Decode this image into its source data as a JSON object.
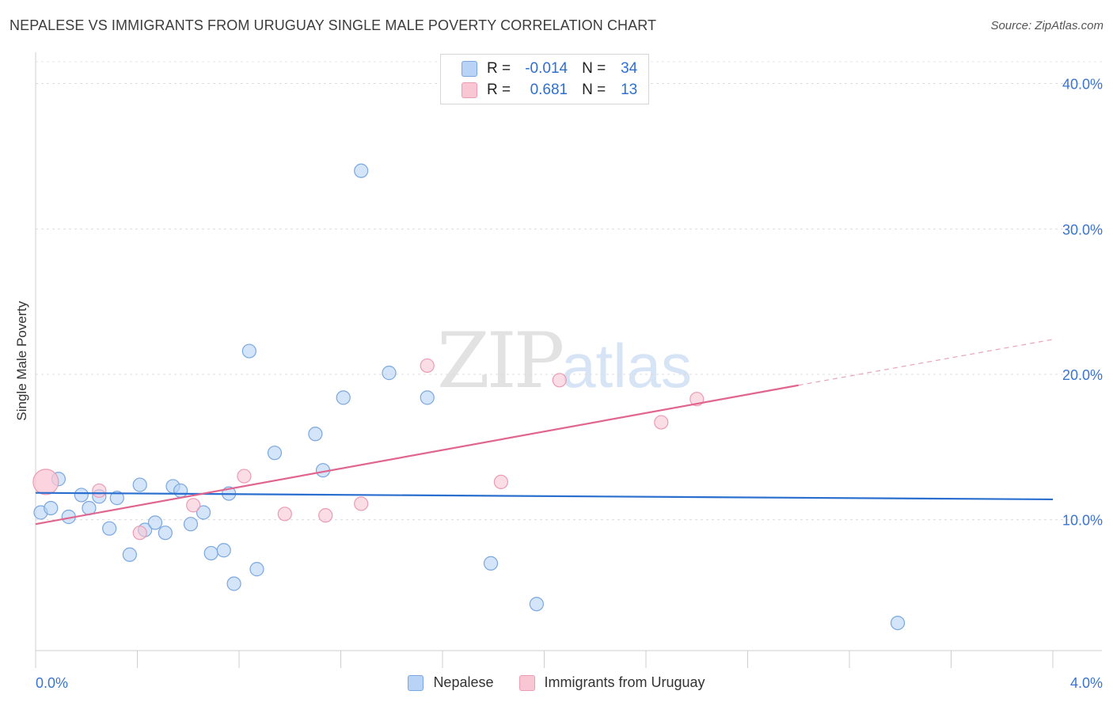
{
  "header": {
    "title": "NEPALESE VS IMMIGRANTS FROM URUGUAY SINGLE MALE POVERTY CORRELATION CHART",
    "source": "Source: ZipAtlas.com"
  },
  "watermark": {
    "zip": "ZIP",
    "atlas": "atlas"
  },
  "legend": {
    "rows": [
      {
        "r_label": "R =",
        "r_value": "-0.014",
        "n_label": "N =",
        "n_value": "34",
        "color": "#b8d3f5",
        "border": "#7aa7e0"
      },
      {
        "r_label": "R =",
        "r_value": "0.681",
        "n_label": "N =",
        "n_value": "13",
        "color": "#f9c6d4",
        "border": "#ec9bb4"
      }
    ]
  },
  "bottom_legend": {
    "items": [
      {
        "label": "Nepalese",
        "color": "#b8d3f5",
        "border": "#7aa7e0"
      },
      {
        "label": "Immigrants from Uruguay",
        "color": "#f9c6d4",
        "border": "#ec9bb4"
      }
    ]
  },
  "chart_data": {
    "type": "scatter",
    "title": "NEPALESE VS IMMIGRANTS FROM URUGUAY SINGLE MALE POVERTY CORRELATION CHART",
    "xlabel": "",
    "ylabel": "Single Male Poverty",
    "xlim": [
      0.0,
      4.0
    ],
    "ylim": [
      1.0,
      41.5
    ],
    "x_tick_labels": [
      "0.0%",
      "4.0%"
    ],
    "y_ticks": [
      10,
      20,
      30,
      40
    ],
    "y_tick_labels": [
      "10.0%",
      "20.0%",
      "30.0%",
      "40.0%"
    ],
    "grid": true,
    "legend_position": "top-center",
    "series": [
      {
        "name": "Nepalese",
        "color": "#7aa7e0",
        "fill": "#b8d3f5",
        "r": "-0.014",
        "n": "34",
        "points": [
          [
            0.02,
            10.5
          ],
          [
            0.06,
            10.8
          ],
          [
            0.09,
            12.8
          ],
          [
            0.13,
            10.2
          ],
          [
            0.18,
            11.7
          ],
          [
            0.21,
            10.8
          ],
          [
            0.25,
            11.6
          ],
          [
            0.29,
            9.4
          ],
          [
            0.32,
            11.5
          ],
          [
            0.37,
            7.6
          ],
          [
            0.41,
            12.4
          ],
          [
            0.43,
            9.3
          ],
          [
            0.47,
            9.8
          ],
          [
            0.51,
            9.1
          ],
          [
            0.54,
            12.3
          ],
          [
            0.57,
            12.0
          ],
          [
            0.61,
            9.7
          ],
          [
            0.66,
            10.5
          ],
          [
            0.69,
            7.7
          ],
          [
            0.74,
            7.9
          ],
          [
            0.76,
            11.8
          ],
          [
            0.78,
            5.6
          ],
          [
            0.84,
            21.6
          ],
          [
            0.87,
            6.6
          ],
          [
            0.94,
            14.6
          ],
          [
            1.1,
            15.9
          ],
          [
            1.13,
            13.4
          ],
          [
            1.21,
            18.4
          ],
          [
            1.28,
            34.0
          ],
          [
            1.39,
            20.1
          ],
          [
            1.54,
            18.4
          ],
          [
            1.79,
            7.0
          ],
          [
            1.97,
            4.2
          ],
          [
            3.39,
            2.9
          ]
        ],
        "trend": {
          "x": [
            0.0,
            4.0
          ],
          "y": [
            11.85,
            11.4
          ]
        }
      },
      {
        "name": "Immigrants from Uruguay",
        "color": "#ec9bb4",
        "fill": "#f9c6d4",
        "r": "0.681",
        "n": "13",
        "points": [
          [
            0.04,
            12.6
          ],
          [
            0.25,
            12.0
          ],
          [
            0.41,
            9.1
          ],
          [
            0.62,
            11.0
          ],
          [
            0.82,
            13.0
          ],
          [
            0.98,
            10.4
          ],
          [
            1.14,
            10.3
          ],
          [
            1.28,
            11.1
          ],
          [
            1.54,
            20.6
          ],
          [
            1.83,
            12.6
          ],
          [
            2.06,
            19.6
          ],
          [
            2.46,
            16.7
          ],
          [
            2.6,
            18.3
          ]
        ],
        "trend": {
          "x": [
            0.0,
            3.0
          ],
          "y": [
            9.7,
            19.25
          ],
          "dashed_to": {
            "x": 4.0,
            "y": 22.4
          }
        }
      }
    ]
  }
}
